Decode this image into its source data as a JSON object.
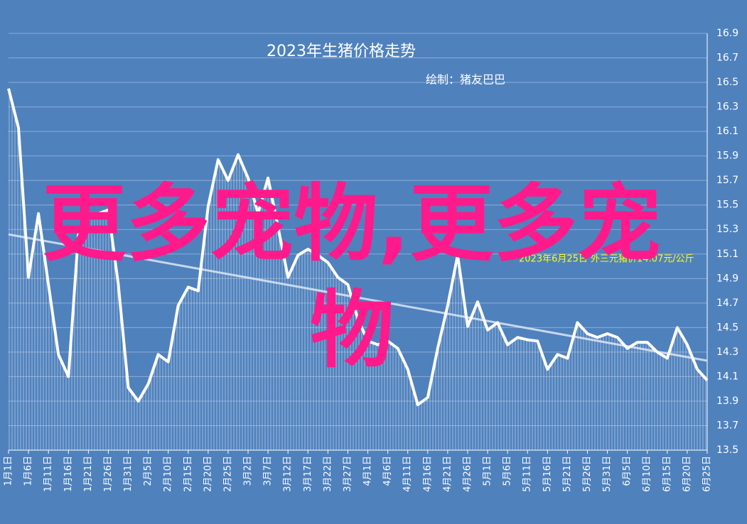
{
  "chart_data": {
    "type": "line",
    "title": "2023年生猪价格走势",
    "subtitle": "绘制：猪友巴巴",
    "annotation": "2023年6月25日 外三元猪价14.07元/公斤",
    "watermark": "更多宠物,更多宠物",
    "categories": [
      "1月1日",
      null,
      "1月6日",
      null,
      "1月11日",
      null,
      "1月16日",
      null,
      "1月21日",
      null,
      "1月26日",
      null,
      "1月31日",
      null,
      "2月5日",
      null,
      "2月10日",
      null,
      "2月15日",
      null,
      "2月20日",
      null,
      "2月25日",
      null,
      "3月2日",
      null,
      "3月7日",
      null,
      "3月12日",
      null,
      "3月17日",
      null,
      "3月22日",
      null,
      "3月27日",
      null,
      "4月1日",
      null,
      "4月6日",
      null,
      "4月11日",
      null,
      "4月16日",
      null,
      "4月21日",
      null,
      "4月26日",
      null,
      "5月1日",
      null,
      "5月6日",
      null,
      "5月11日",
      null,
      "5月16日",
      null,
      "5月21日",
      null,
      "5月26日",
      null,
      "5月31日",
      null,
      "6月5日",
      null,
      "6月10日",
      null,
      "6月15日",
      null,
      "6月20日",
      null,
      "6月25日"
    ],
    "series": [
      {
        "color": "#ffffff",
        "values": [
          16.45,
          16.13,
          14.91,
          15.43,
          14.85,
          14.28,
          14.1,
          15.26,
          15.43,
          15.43,
          15.46,
          14.85,
          14.01,
          13.9,
          14.04,
          14.28,
          14.22,
          14.68,
          14.83,
          14.8,
          15.49,
          15.87,
          15.7,
          15.91,
          15.72,
          15.43,
          15.72,
          15.32,
          14.91,
          15.09,
          15.14,
          15.09,
          15.03,
          14.91,
          14.85,
          14.57,
          14.39,
          14.36,
          14.39,
          14.33,
          14.16,
          13.87,
          13.93,
          14.33,
          14.68,
          15.09,
          14.51,
          14.71,
          14.48,
          14.54,
          14.36,
          14.42,
          14.4,
          14.39,
          14.16,
          14.28,
          14.25,
          14.54,
          14.45,
          14.42,
          14.45,
          14.42,
          14.33,
          14.38,
          14.38,
          14.3,
          14.25,
          14.5,
          14.36,
          14.16,
          14.07
        ]
      }
    ],
    "trendline": [
      15.26,
      14.23
    ],
    "ylim": [
      13.5,
      16.9
    ],
    "yticks": [
      13.5,
      13.7,
      13.9,
      14.1,
      14.3,
      14.5,
      14.7,
      14.9,
      15.1,
      15.3,
      15.5,
      15.7,
      15.9,
      16.1,
      16.3,
      16.5,
      16.7,
      16.9
    ],
    "grid": true
  }
}
